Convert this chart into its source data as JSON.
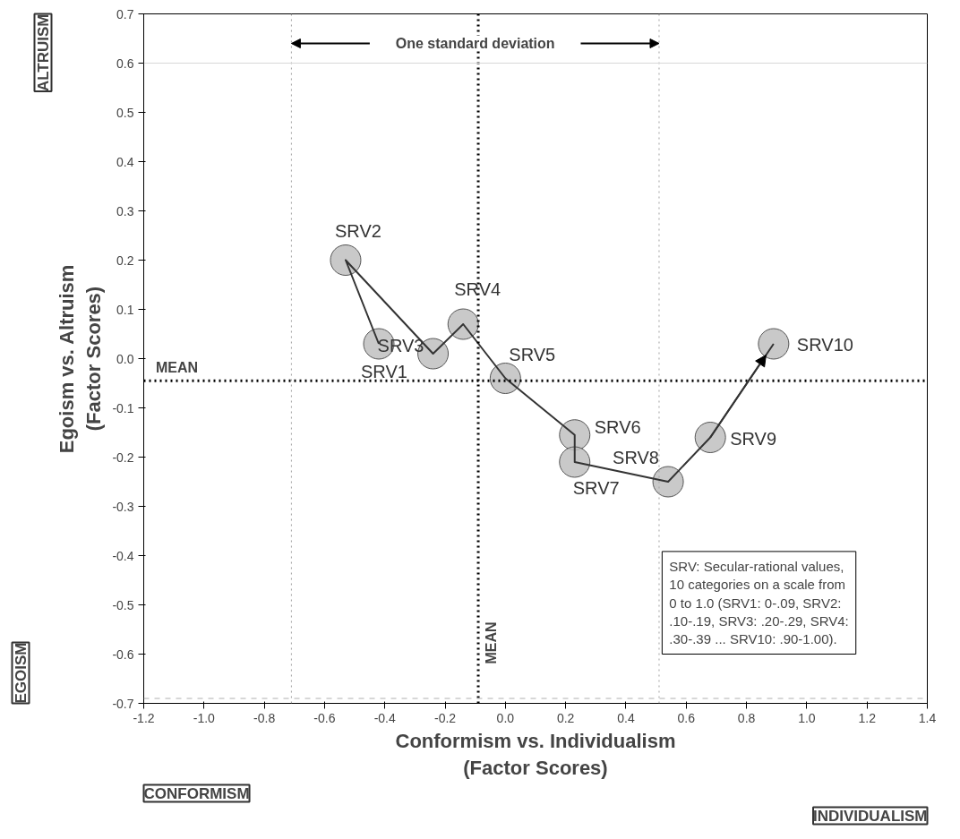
{
  "chart_data": {
    "type": "line",
    "xlabel": "Conformism vs. Individualism\n(Factor Scores)",
    "ylabel": "Egoism vs. Altruism\n(Factor Scores)",
    "x": [
      -0.42,
      -0.53,
      -0.24,
      -0.14,
      0.0,
      0.23,
      0.23,
      0.54,
      0.68,
      0.89
    ],
    "series": [
      {
        "color": "#c0c0c0",
        "values": [
          0.03,
          0.2,
          0.01,
          0.07,
          -0.04,
          -0.155,
          -0.21,
          -0.25,
          -0.16,
          0.03
        ]
      }
    ],
    "marker": "circle",
    "line_style": "solid",
    "grid": false,
    "xlim": [
      -1.2,
      1.4
    ],
    "xticks": [
      {
        "value": -1.2,
        "label": "-1.2"
      },
      {
        "value": -1.0,
        "label": "-1.0"
      },
      {
        "value": -0.8,
        "label": "-0.8"
      },
      {
        "value": -0.6,
        "label": "-0.6"
      },
      {
        "value": -0.4,
        "label": "-0.4"
      },
      {
        "value": -0.2,
        "label": "-0.2"
      },
      {
        "value": 0.0,
        "label": "0.0"
      },
      {
        "value": 0.2,
        "label": "0.2"
      },
      {
        "value": 0.4,
        "label": "0.4"
      },
      {
        "value": 0.6,
        "label": "0.6"
      },
      {
        "value": 0.8,
        "label": "0.8"
      },
      {
        "value": 1.0,
        "label": "1.0"
      },
      {
        "value": 1.2,
        "label": "1.2"
      },
      {
        "value": 1.4,
        "label": "1.4"
      }
    ],
    "ylim": [
      -0.7,
      0.7
    ],
    "yticks": [
      {
        "value": -0.7,
        "label": "-0.7"
      },
      {
        "value": -0.6,
        "label": "-0.6"
      },
      {
        "value": -0.5,
        "label": "-0.5"
      },
      {
        "value": -0.4,
        "label": "-0.4"
      },
      {
        "value": -0.3,
        "label": "-0.3"
      },
      {
        "value": -0.2,
        "label": "-0.2"
      },
      {
        "value": -0.1,
        "label": "-0.1"
      },
      {
        "value": 0.0,
        "label": "0.0"
      },
      {
        "value": 0.1,
        "label": "0.1"
      },
      {
        "value": 0.2,
        "label": "0.2"
      },
      {
        "value": 0.3,
        "label": "0.3"
      },
      {
        "value": 0.4,
        "label": "0.4"
      },
      {
        "value": 0.5,
        "label": "0.5"
      },
      {
        "value": 0.6,
        "label": "0.6"
      },
      {
        "value": 0.7,
        "label": "0.7"
      }
    ],
    "ref_lines": [
      {
        "axis": "y",
        "value": -0.045,
        "label": "MEAN",
        "color": "#000000",
        "line_style": "dotted"
      },
      {
        "axis": "x",
        "value": -0.09,
        "label": "MEAN",
        "color": "#000000",
        "line_style": "dotted"
      },
      {
        "axis": "x",
        "value": -0.71,
        "color": "#a0a0a0",
        "line_style": "dotted"
      },
      {
        "axis": "x",
        "value": 0.51,
        "color": "#a0a0a0",
        "line_style": "dotted"
      },
      {
        "axis": "y",
        "value": 0.6,
        "color": "#d8d8d8",
        "line_style": "solid"
      },
      {
        "axis": "y",
        "value": -0.69,
        "color": "#b0b0b0",
        "line_style": "dashed"
      }
    ],
    "annotations": [
      {
        "text": "SRV1",
        "x": -0.42,
        "y": 0.03
      },
      {
        "text": "SRV2",
        "x": -0.53,
        "y": 0.2
      },
      {
        "text": "SRV3",
        "x": -0.24,
        "y": 0.01
      },
      {
        "text": "SRV4",
        "x": -0.14,
        "y": 0.07
      },
      {
        "text": "SRV5",
        "x": 0.0,
        "y": -0.04
      },
      {
        "text": "SRV6",
        "x": 0.23,
        "y": -0.155
      },
      {
        "text": "SRV7",
        "x": 0.23,
        "y": -0.21
      },
      {
        "text": "SRV8",
        "x": 0.54,
        "y": -0.25
      },
      {
        "text": "SRV9",
        "x": 0.68,
        "y": -0.16
      },
      {
        "text": "SRV10",
        "x": 0.89,
        "y": 0.03
      },
      "One standard deviation",
      "SRV: Secular-rational values, 10 categories on a scale from 0 to 1.0 (SRV1: 0-.09, SRV2: .10-.19, SRV3: .20-.29, SRV4: .30-.39 ... SRV10: .90-1.00).",
      "ALTRUISM",
      "EGOISM",
      "CONFORMISM",
      "INDIVIDUALISM"
    ]
  }
}
